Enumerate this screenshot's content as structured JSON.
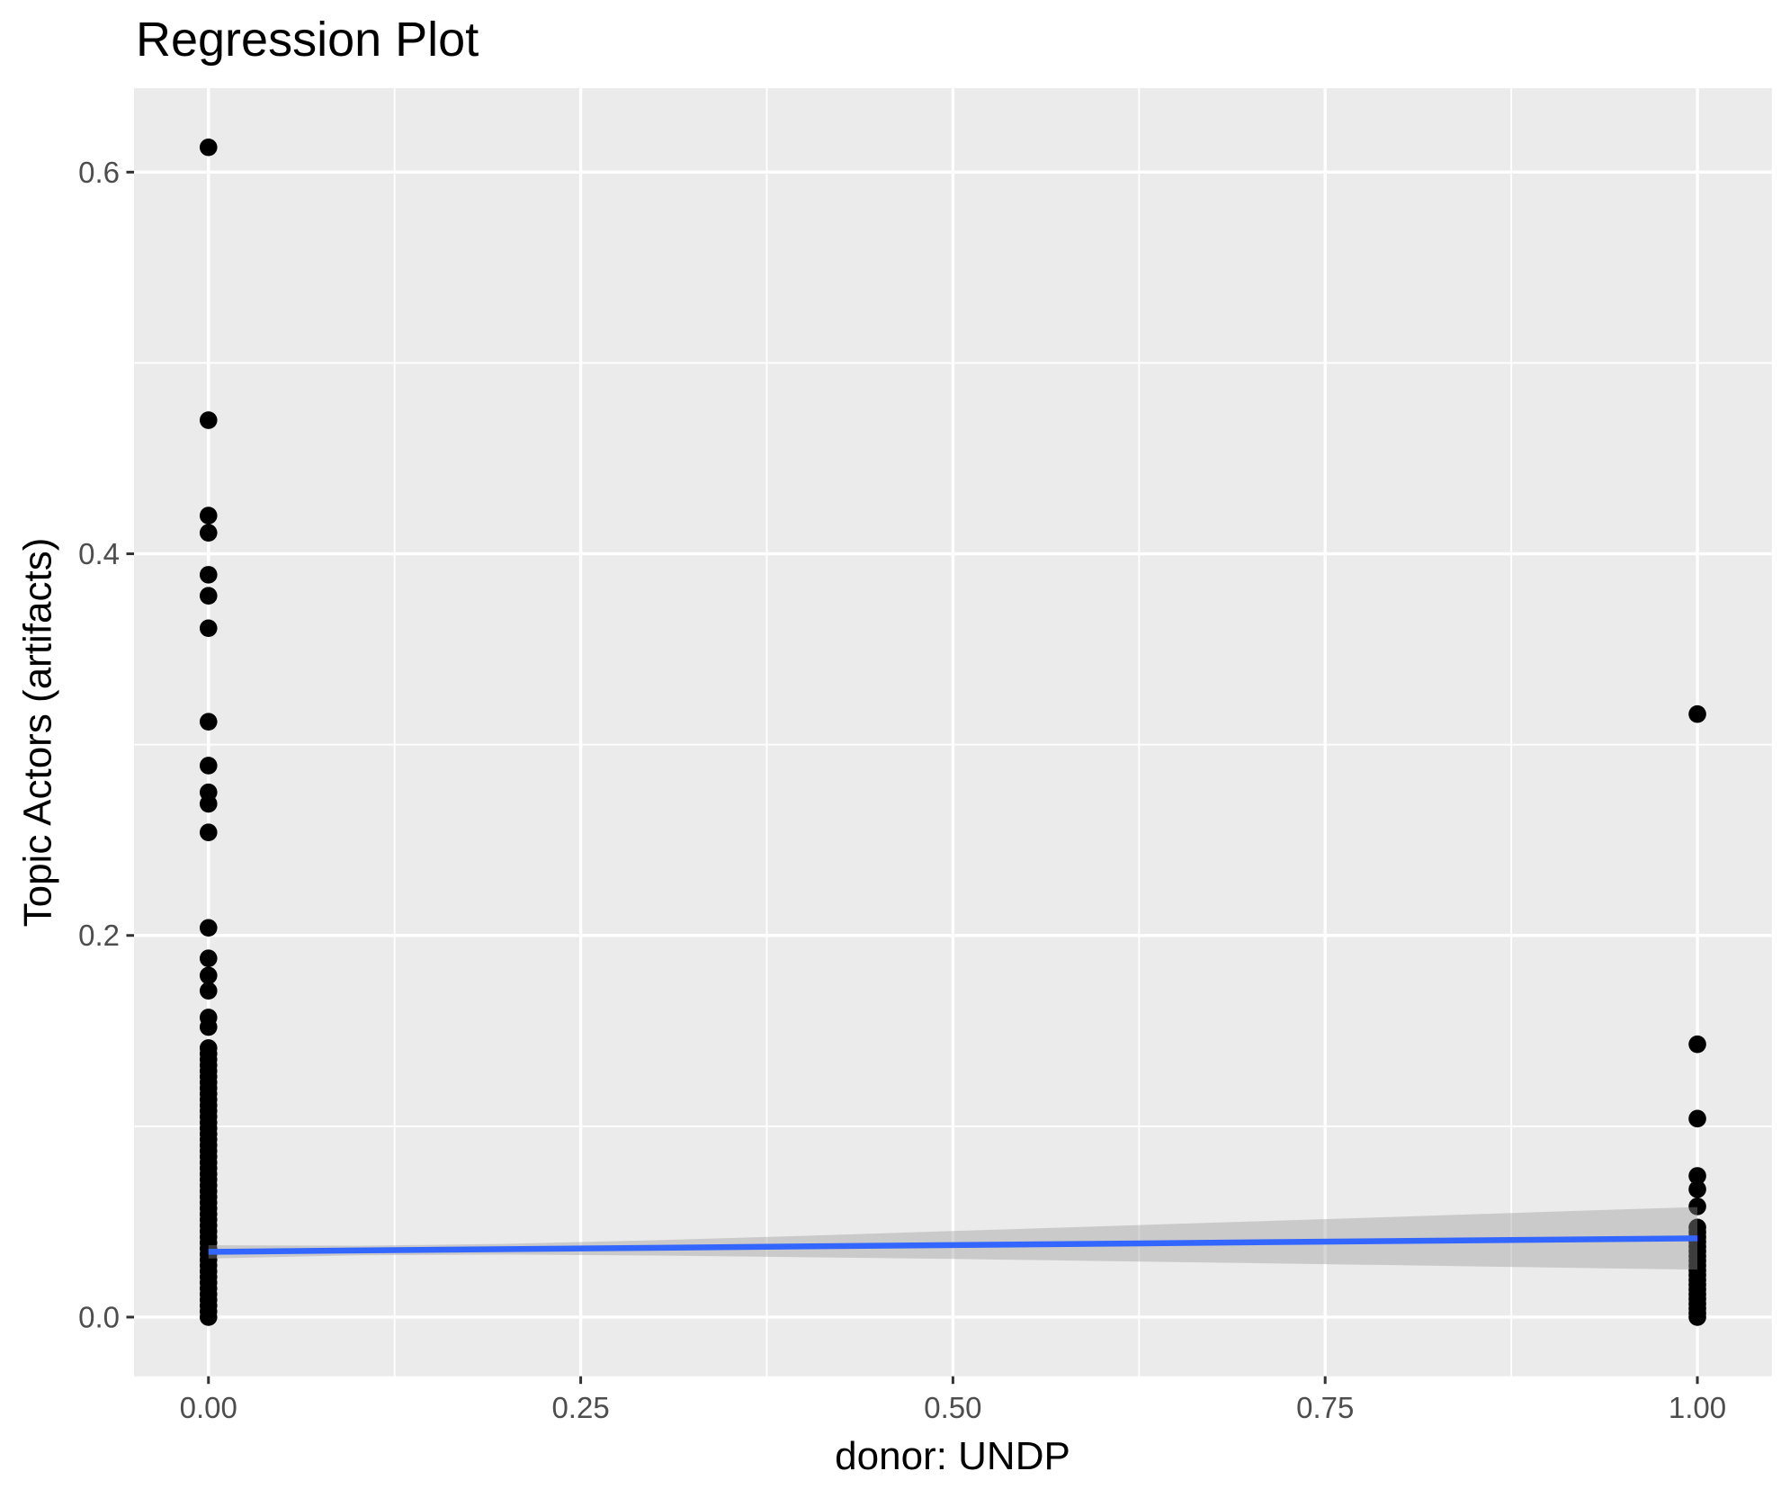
{
  "title": "Regression Plot",
  "chart_data": {
    "type": "scatter",
    "title": "Regression Plot",
    "xlabel": "donor: UNDP",
    "ylabel": "Topic Actors (artifacts)",
    "xlim": [
      -0.05,
      1.05
    ],
    "ylim": [
      -0.031,
      0.644
    ],
    "grid": true,
    "x_ticks": [
      0.0,
      0.25,
      0.5,
      0.75,
      1.0
    ],
    "x_tick_labels": [
      "0.00",
      "0.25",
      "0.50",
      "0.75",
      "1.00"
    ],
    "y_ticks": [
      0.0,
      0.2,
      0.4,
      0.6
    ],
    "y_tick_labels": [
      "0.0",
      "0.2",
      "0.4",
      "0.6"
    ],
    "x_minor_gridlines": [
      0.125,
      0.375,
      0.625,
      0.875
    ],
    "y_minor_gridlines": [
      0.1,
      0.3,
      0.5
    ],
    "series": [
      {
        "name": "observations at donor = 0",
        "x": 0,
        "y": [
          0.613,
          0.47,
          0.42,
          0.411,
          0.389,
          0.378,
          0.361,
          0.312,
          0.289,
          0.275,
          0.269,
          0.254,
          0.204,
          0.188,
          0.179,
          0.171,
          0.157,
          0.152,
          0.141,
          0.138,
          0.135,
          0.132,
          0.129,
          0.126,
          0.123,
          0.12,
          0.117,
          0.114,
          0.111,
          0.108,
          0.105,
          0.102,
          0.099,
          0.096,
          0.093,
          0.09,
          0.087,
          0.084,
          0.081,
          0.078,
          0.075,
          0.072,
          0.069,
          0.066,
          0.063,
          0.06,
          0.057,
          0.054,
          0.051,
          0.048,
          0.045,
          0.042,
          0.039,
          0.036,
          0.033,
          0.03,
          0.027,
          0.024,
          0.021,
          0.018,
          0.015,
          0.012,
          0.009,
          0.006,
          0.003,
          0.0
        ]
      },
      {
        "name": "observations at donor = 1",
        "x": 1,
        "y": [
          0.316,
          0.143,
          0.104,
          0.074,
          0.067,
          0.058,
          0.047,
          0.0445,
          0.042,
          0.0395,
          0.037,
          0.0345,
          0.032,
          0.0295,
          0.027,
          0.0245,
          0.022,
          0.0195,
          0.017,
          0.0145,
          0.012,
          0.0095,
          0.007,
          0.0045,
          0.002,
          0.0
        ]
      }
    ],
    "regression_line": {
      "x": [
        0,
        1
      ],
      "y": [
        0.0342,
        0.0413
      ]
    },
    "confidence_band": {
      "x": [
        0.0,
        0.1,
        0.2,
        0.3,
        0.4,
        0.5,
        0.6,
        0.7,
        0.8,
        0.9,
        1.0
      ],
      "upper": [
        0.0377,
        0.0374,
        0.0384,
        0.0403,
        0.0426,
        0.0451,
        0.0476,
        0.0501,
        0.0526,
        0.0552,
        0.0577
      ],
      "lower": [
        0.0307,
        0.0324,
        0.0328,
        0.0323,
        0.0314,
        0.0305,
        0.0294,
        0.0283,
        0.0272,
        0.026,
        0.0249
      ]
    },
    "style": {
      "panel_background": "#EBEBEB",
      "gridline_color": "#FFFFFF",
      "point_color": "#000000",
      "line_color": "#3366FF",
      "band_color": "#999999",
      "band_opacity": 0.4,
      "tick_mark_color": "#333333",
      "tick_label_color": "#4D4D4D",
      "title_color": "#000000"
    }
  }
}
